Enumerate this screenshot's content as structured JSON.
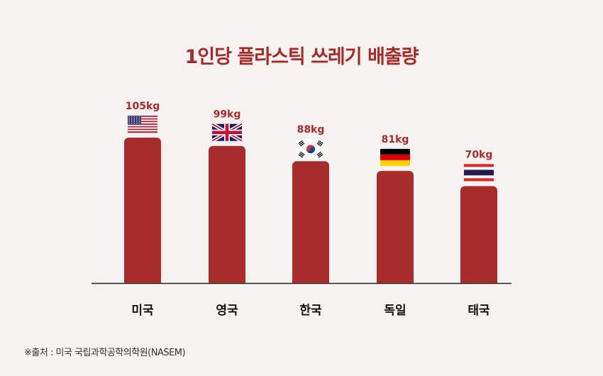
{
  "chart_data": {
    "type": "bar",
    "title": "1인당 플라스틱 쓰레기 배출량",
    "categories": [
      "미국",
      "영국",
      "한국",
      "독일",
      "태국"
    ],
    "values": [
      105,
      99,
      88,
      81,
      70
    ],
    "value_labels": [
      "105kg",
      "99kg",
      "88kg",
      "81kg",
      "70kg"
    ],
    "flag_icons": [
      "us-flag-icon",
      "uk-flag-icon",
      "kr-flag-icon",
      "de-flag-icon",
      "th-flag-icon"
    ],
    "bar_color": "#a82c2c",
    "ylim": [
      0,
      105
    ],
    "grid": false
  },
  "source": "※출처 : 미국 국립과학공학의학원(NASEM)"
}
